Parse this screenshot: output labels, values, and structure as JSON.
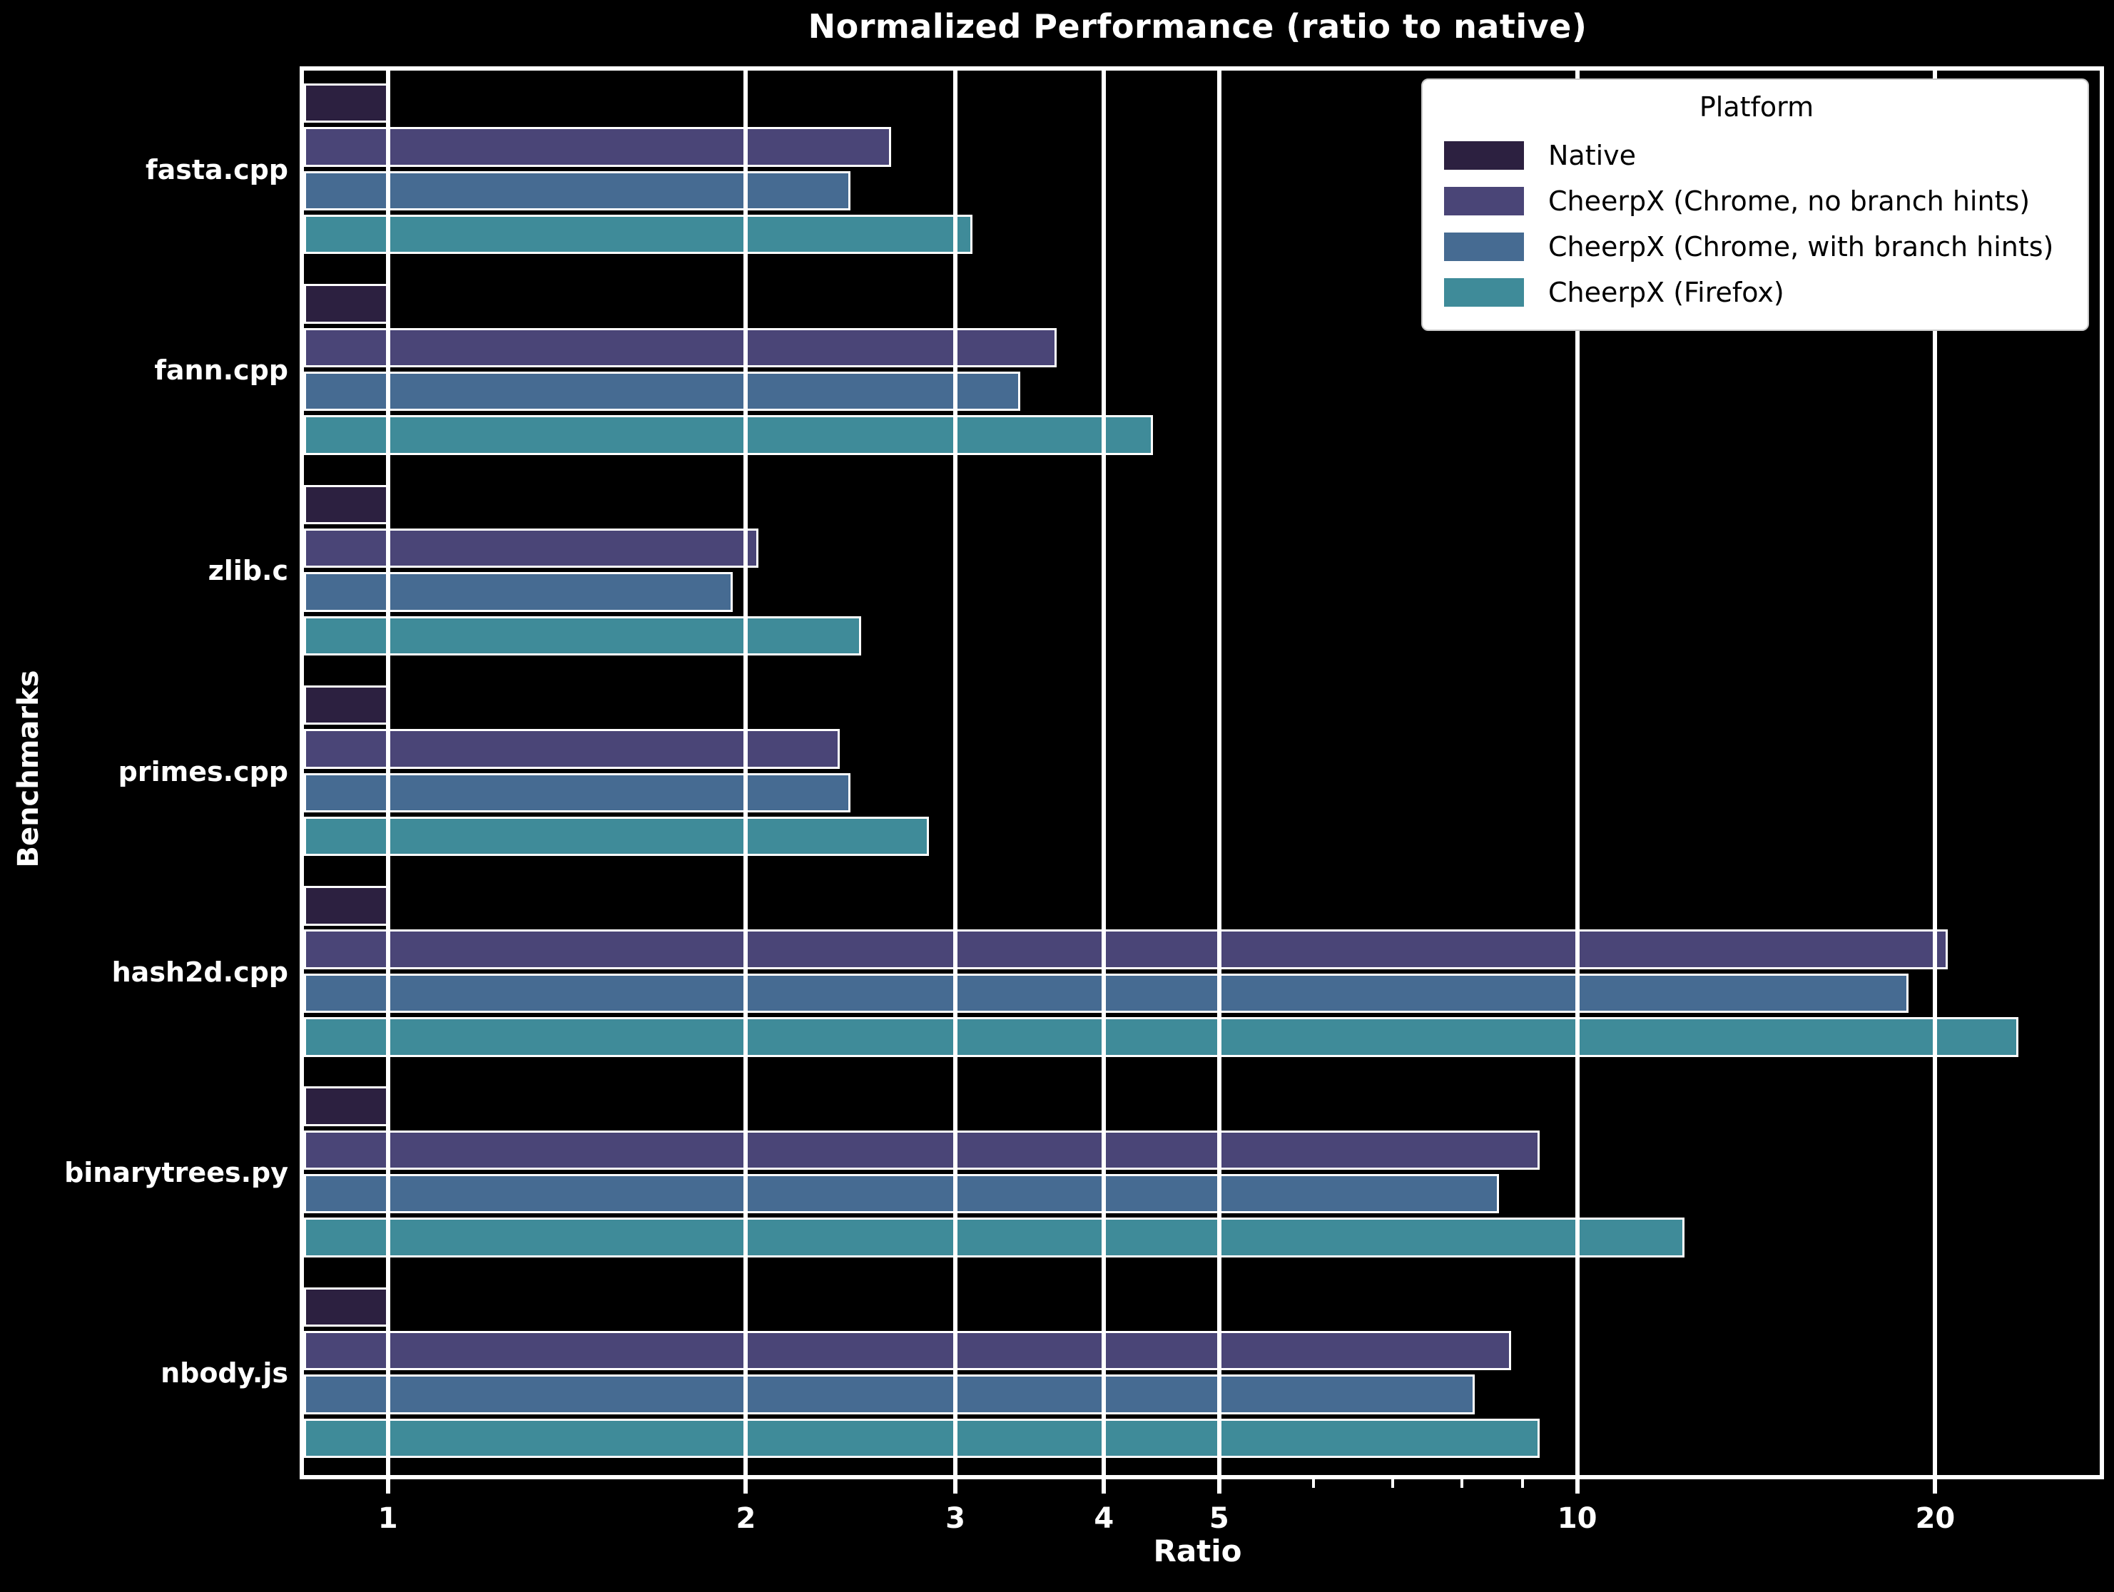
{
  "title": "Normalized Performance (ratio to native)",
  "xlabel": "Ratio",
  "ylabel": "Benchmarks",
  "legend": {
    "title": "Platform",
    "entries": [
      {
        "label": "Native",
        "color": "#2c2040"
      },
      {
        "label": "CheerpX (Chrome, no branch hints)",
        "color": "#4a4577"
      },
      {
        "label": "CheerpX (Chrome, with branch hints)",
        "color": "#466b92"
      },
      {
        "label": "CheerpX (Firefox)",
        "color": "#3f8b99"
      }
    ]
  },
  "colors": {
    "background": "#000000",
    "grid": "#ffffff",
    "text": "#ffffff",
    "legend_background": "#ffffff",
    "legend_text": "#000000",
    "bar_edge": "#ffffff"
  },
  "chart_data": {
    "type": "bar",
    "orientation": "horizontal",
    "x_scale": "log",
    "title": "Normalized Performance (ratio to native)",
    "xlabel": "Ratio",
    "ylabel": "Benchmarks",
    "xlim": [
      0.85,
      27.5
    ],
    "x_ticks": [
      1,
      2,
      3,
      4,
      5,
      10,
      20
    ],
    "x_minor_ticks": [
      6,
      7,
      8,
      9
    ],
    "grid": "major-x",
    "legend_position": "upper right",
    "categories": [
      "fasta.cpp",
      "fann.cpp",
      "zlib.c",
      "primes.cpp",
      "hash2d.cpp",
      "binarytrees.py",
      "nbody.js"
    ],
    "series": [
      {
        "name": "Native",
        "color": "#2c2040",
        "values": [
          1.0,
          1.0,
          1.0,
          1.0,
          1.0,
          1.0,
          1.0
        ]
      },
      {
        "name": "CheerpX (Chrome, no branch hints)",
        "color": "#4a4577",
        "values": [
          2.65,
          3.65,
          2.05,
          2.4,
          20.5,
          9.3,
          8.8
        ]
      },
      {
        "name": "CheerpX (Chrome, with branch hints)",
        "color": "#466b92",
        "values": [
          2.45,
          3.4,
          1.95,
          2.45,
          19.0,
          8.6,
          8.2
        ]
      },
      {
        "name": "CheerpX (Firefox)",
        "color": "#3f8b99",
        "values": [
          3.1,
          4.4,
          2.5,
          2.85,
          23.5,
          12.3,
          9.3
        ]
      }
    ]
  }
}
